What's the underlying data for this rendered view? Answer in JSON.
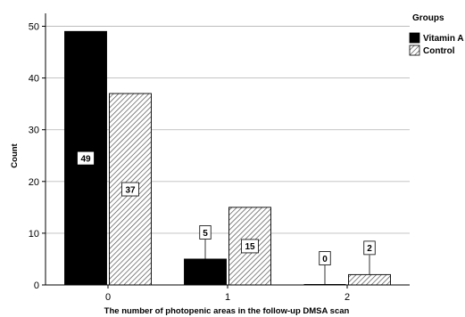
{
  "chart_data": {
    "type": "bar",
    "categories": [
      "0",
      "1",
      "2"
    ],
    "series": [
      {
        "name": "Vitamin A",
        "values": [
          49,
          5,
          0
        ],
        "pattern": "solid",
        "color": "#000000"
      },
      {
        "name": "Control",
        "values": [
          37,
          15,
          2
        ],
        "pattern": "hatched",
        "color": "#555555"
      }
    ],
    "xlabel": "The number of photopenic areas in the follow-up DMSA scan",
    "ylabel": "Count",
    "ylim": [
      0,
      50
    ],
    "yticks": [
      0,
      10,
      20,
      30,
      40,
      50
    ],
    "grid": true,
    "legend_title": "Groups",
    "legend_position": "top-right"
  }
}
